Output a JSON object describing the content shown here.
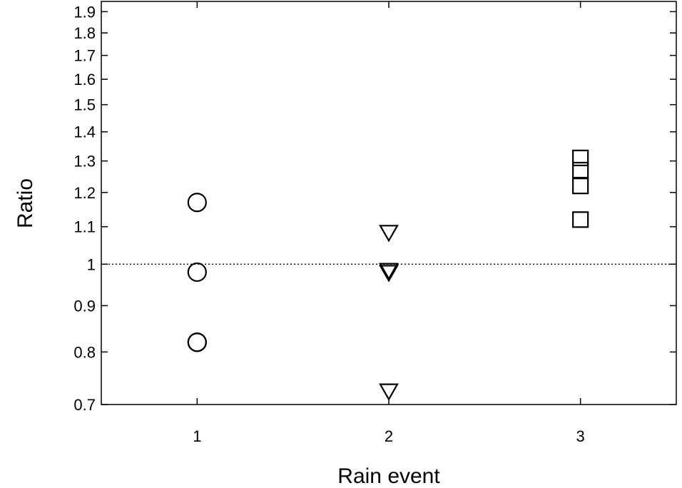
{
  "chart_data": {
    "type": "scatter",
    "title": "",
    "xlabel": "Rain event",
    "ylabel": "Ratio",
    "y_scale": "log",
    "ylim": [
      0.7,
      1.95
    ],
    "xlim": [
      0.5,
      3.5
    ],
    "x_ticks": [
      1,
      2,
      3
    ],
    "x_tick_labels": [
      "1",
      "2",
      "3"
    ],
    "y_ticks": [
      0.7,
      0.8,
      0.9,
      1,
      1.1,
      1.2,
      1.3,
      1.4,
      1.5,
      1.6,
      1.7,
      1.8,
      1.9
    ],
    "y_tick_labels": [
      "0.7",
      "0.8",
      "0.9",
      "1",
      "1.1",
      "1.2",
      "1.3",
      "1.4",
      "1.5",
      "1.6",
      "1.7",
      "1.8",
      "1.9"
    ],
    "reference_line": {
      "y": 1.0,
      "style": "dotted"
    },
    "grid": false,
    "legend": "none",
    "series": [
      {
        "marker": "circle",
        "points": [
          [
            1,
            1.17
          ],
          [
            1,
            0.98
          ],
          [
            1,
            0.82
          ],
          [
            1,
            0.82
          ]
        ]
      },
      {
        "marker": "triangle-down",
        "points": [
          [
            2,
            1.085
          ],
          [
            2,
            0.985
          ],
          [
            2,
            0.98
          ],
          [
            2,
            0.725
          ]
        ]
      },
      {
        "marker": "square",
        "points": [
          [
            3,
            1.31
          ],
          [
            3,
            1.27
          ],
          [
            3,
            1.22
          ],
          [
            3,
            1.12
          ]
        ]
      }
    ]
  }
}
